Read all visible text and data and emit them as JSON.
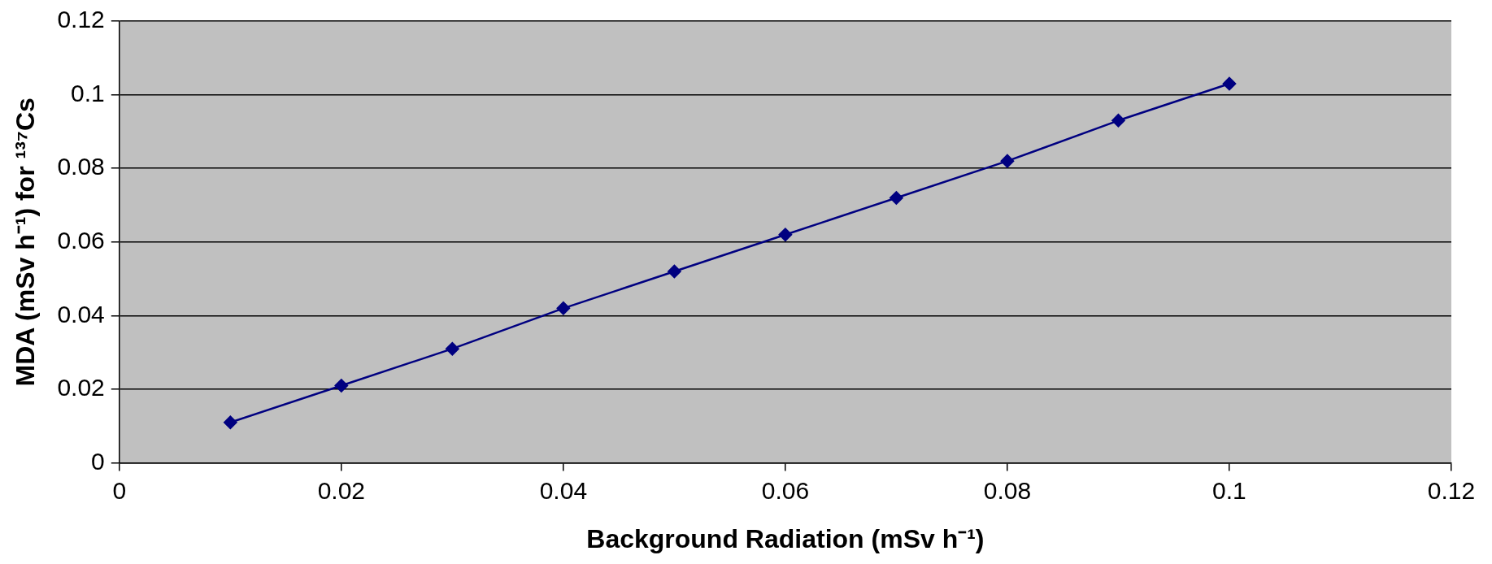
{
  "chart_data": {
    "type": "line",
    "xlabel": "Background Radiation (mSv h⁻¹)",
    "ylabel": "MDA (mSv h⁻¹) for ¹³⁷Cs",
    "x": [
      0.01,
      0.02,
      0.03,
      0.04,
      0.05,
      0.06,
      0.07,
      0.08,
      0.09,
      0.1
    ],
    "series": [
      {
        "color": "#000080",
        "values": [
          0.011,
          0.021,
          0.031,
          0.042,
          0.052,
          0.062,
          0.072,
          0.082,
          0.093,
          0.103
        ]
      }
    ],
    "xlim": [
      0,
      0.12
    ],
    "xticks": [
      0,
      0.02,
      0.04,
      0.06,
      0.08,
      0.1,
      0.12
    ],
    "ylim": [
      0,
      0.12
    ],
    "yticks": [
      0,
      0.02,
      0.04,
      0.06,
      0.08,
      0.1,
      0.12
    ],
    "grid": "y",
    "legend": false,
    "marker": "diamond",
    "line_style": "solid"
  }
}
